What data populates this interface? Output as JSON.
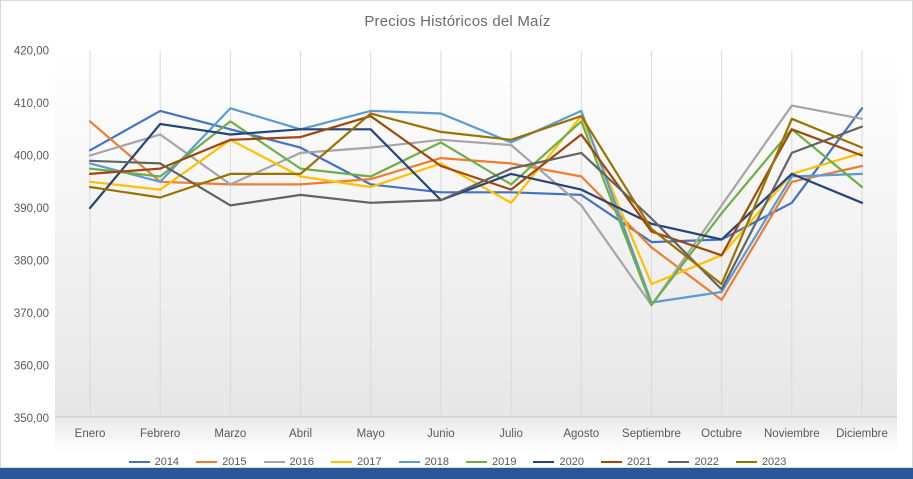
{
  "window": {
    "bottom_bar_color": "#2b579a"
  },
  "chart_data": {
    "type": "line",
    "title": "Precios Históricos del Maíz",
    "title_color": "#6b6b6b",
    "legend_position": "bottom",
    "gridlines": "vertical-only",
    "gridline_color": "#d9d9d9",
    "axis_line_color": "#c6c6c6",
    "axis_label_color": "#595959",
    "plot_background": "white-to-gray vertical gradient",
    "categories": [
      "Enero",
      "Febrero",
      "Marzo",
      "Abril",
      "Mayo",
      "Junio",
      "Julio",
      "Agosto",
      "Septiembre",
      "Octubre",
      "Noviembre",
      "Diciembre"
    ],
    "y_axis": {
      "min": 350,
      "max": 420,
      "step": 10,
      "tick_labels": [
        "350,00",
        "360,00",
        "370,00",
        "380,00",
        "390,00",
        "400,00",
        "410,00",
        "420,00"
      ]
    },
    "series": [
      {
        "name": "2014",
        "color": "#4472C4",
        "values": [
          401,
          408.5,
          405,
          401.5,
          394.5,
          393,
          393,
          392.5,
          383.5,
          384,
          391,
          409
        ]
      },
      {
        "name": "2015",
        "color": "#ED7D31",
        "values": [
          406.5,
          395,
          394.5,
          394.5,
          395.5,
          399.5,
          398.5,
          396,
          382.5,
          372.5,
          395,
          398
        ]
      },
      {
        "name": "2016",
        "color": "#A5A5A5",
        "values": [
          400,
          404,
          394.5,
          400.5,
          401.5,
          403,
          402,
          390.5,
          371.5,
          390.5,
          409.5,
          407
        ]
      },
      {
        "name": "2017",
        "color": "#FFC000",
        "values": [
          395,
          393.5,
          403,
          396,
          394,
          398.5,
          391,
          407.5,
          375.5,
          381,
          396.5,
          400.5
        ]
      },
      {
        "name": "2018",
        "color": "#5B9BD5",
        "values": [
          398.5,
          395,
          409,
          405,
          408.5,
          408,
          402.5,
          408.5,
          372,
          374,
          396,
          396.5
        ]
      },
      {
        "name": "2019",
        "color": "#70AD47",
        "values": [
          397.5,
          396,
          406.5,
          397.5,
          396,
          402.5,
          394.5,
          406.5,
          371.5,
          389,
          405,
          394
        ]
      },
      {
        "name": "2020",
        "color": "#264478",
        "values": [
          390,
          406,
          404,
          405,
          405,
          391.5,
          396.5,
          393.5,
          387,
          384,
          396.5,
          391
        ]
      },
      {
        "name": "2021",
        "color": "#9E480E",
        "values": [
          396.5,
          397.5,
          403,
          403.5,
          407.5,
          398,
          393.5,
          404,
          385.5,
          381,
          405,
          400
        ]
      },
      {
        "name": "2022",
        "color": "#636363",
        "values": [
          399,
          398.5,
          390.5,
          392.5,
          391,
          391.5,
          397.5,
          400.5,
          388,
          374.5,
          400.5,
          405.5
        ]
      },
      {
        "name": "2023",
        "color": "#997300",
        "values": [
          394,
          392,
          396.5,
          396.5,
          408,
          404.5,
          403,
          407.5,
          386,
          375.5,
          407,
          401.5
        ]
      }
    ]
  }
}
